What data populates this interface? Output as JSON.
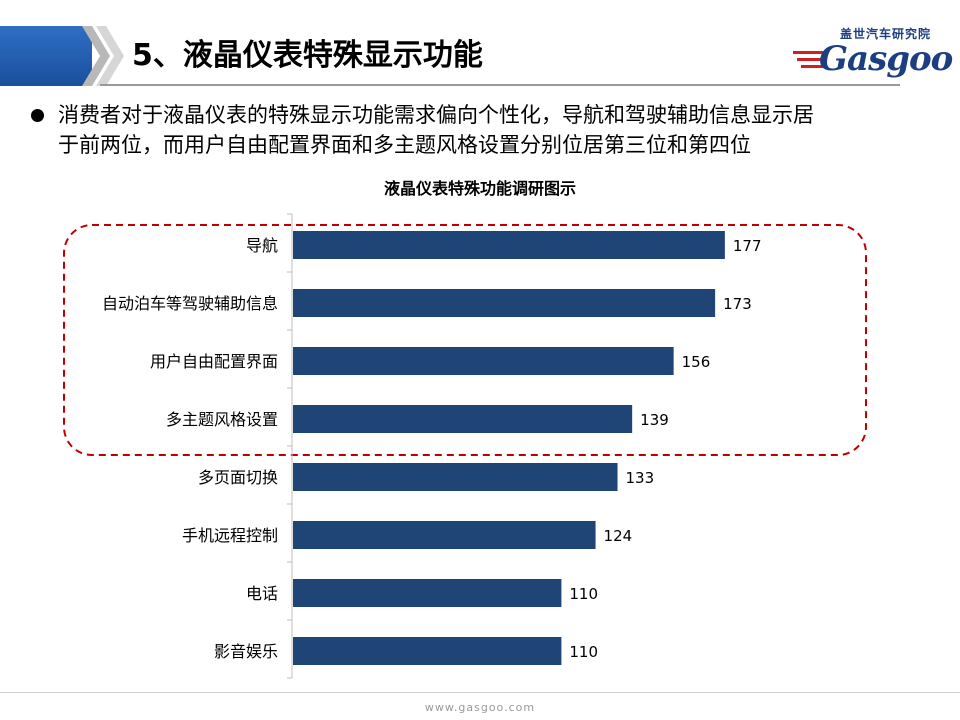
{
  "slide": {
    "title": "5、液晶仪表特殊显示功能",
    "logo_cn": "盖世汽车研究院",
    "logo_word": "Gasgoo",
    "footer_url": "www.gasgoo.com"
  },
  "bullet": {
    "line1": "消费者对于液晶仪表的特殊显示功能需求偏向个性化，导航和驾驶辅助信息显示居",
    "line2": "于前两位，而用户自由配置界面和多主题风格设置分别位居第三位和第四位"
  },
  "colors": {
    "bar": "#1f4576",
    "highlight": "#c00000",
    "header_band": "#2a63b5"
  },
  "chart_data": {
    "type": "bar",
    "orientation": "horizontal",
    "title": "液晶仪表特殊功能调研图示",
    "categories": [
      "导航",
      "自动泊车等驾驶辅助信息",
      "用户自由配置界面",
      "多主题风格设置",
      "多页面切换",
      "手机远程控制",
      "电话",
      "影音娱乐"
    ],
    "values": [
      177,
      173,
      156,
      139,
      133,
      124,
      110,
      110
    ],
    "data_labels": [
      "177",
      "173",
      "156",
      "139",
      "133",
      "124",
      "110",
      "110"
    ],
    "xlim": [
      0,
      200
    ],
    "grid": false,
    "highlight_top_n": 4
  }
}
